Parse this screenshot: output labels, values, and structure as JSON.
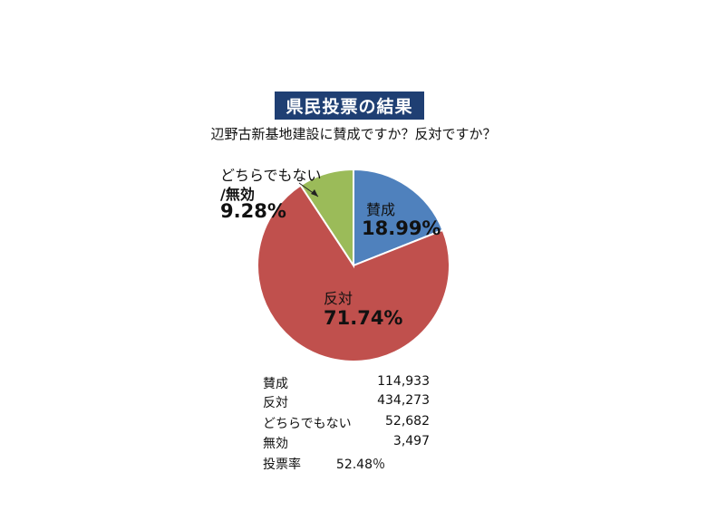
{
  "title": "県民投票の結果",
  "subtitle": "辺野古新基地建設に賛成ですか？反対ですか？",
  "chart_data": {
    "type": "pie",
    "slices": [
      {
        "label": "賛成",
        "value": 18.99,
        "display": "18.99%",
        "color": "#4f81bd"
      },
      {
        "label": "反対",
        "value": 71.74,
        "display": "71.74%",
        "color": "#c0504d"
      },
      {
        "label_line1": "どちらでもない",
        "label_line2": "/無効",
        "value": 9.28,
        "display": "9.28%",
        "color": "#9bbb59"
      }
    ]
  },
  "stats": [
    {
      "label": "賛成",
      "value": "114,933"
    },
    {
      "label": "反対",
      "value": "434,273"
    },
    {
      "label": "どちらでもない",
      "value": "52,682"
    },
    {
      "label": "無効",
      "value": "3,497"
    },
    {
      "label": "投票率",
      "value": "52.48％"
    }
  ]
}
